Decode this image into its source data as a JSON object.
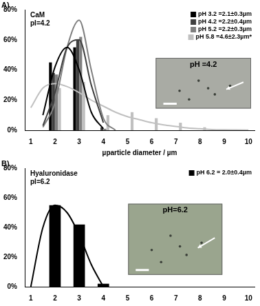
{
  "chart_data": [
    {
      "type": "bar",
      "panel_label": "A)",
      "title": "CaM",
      "subtitle": "pI=4.2",
      "inset_label": "pH =4.2",
      "x_label": "µparticle diameter / µm",
      "categories": [
        "1",
        null,
        "2",
        null,
        "3",
        null,
        "4",
        null,
        "5",
        null,
        "6",
        null,
        "7",
        null,
        "8",
        null,
        "9",
        null,
        "10"
      ],
      "series": [
        {
          "name": "pH 3.2 =2.1±0.3µm",
          "color": "#000000",
          "values": [
            null,
            null,
            45,
            null,
            55,
            null,
            null,
            null,
            null,
            null,
            null,
            null,
            null,
            null,
            null,
            null,
            null,
            null,
            null
          ],
          "curve": [
            null,
            10,
            42,
            55,
            40,
            12,
            1,
            null,
            null,
            null,
            null,
            null,
            null,
            null,
            null,
            null,
            null,
            null,
            null
          ]
        },
        {
          "name": "pH 4.2 =2.2±0.4µm",
          "color": "#404040",
          "values": [
            null,
            null,
            38,
            null,
            60,
            null,
            2,
            null,
            null,
            null,
            null,
            null,
            null,
            null,
            null,
            null,
            null,
            null,
            null
          ],
          "curve": [
            null,
            3,
            25,
            55,
            60,
            30,
            5,
            null,
            null,
            null,
            null,
            null,
            null,
            null,
            null,
            null,
            null,
            null,
            null
          ]
        },
        {
          "name": "pH 5.2 =2.2±0.3µm",
          "color": "#808080",
          "values": [
            null,
            null,
            37,
            null,
            62,
            null,
            1,
            null,
            null,
            null,
            null,
            null,
            null,
            null,
            null,
            null,
            null,
            null,
            null
          ],
          "curve": [
            null,
            2,
            18,
            55,
            73,
            40,
            8,
            0,
            null,
            null,
            null,
            null,
            null,
            null,
            null,
            null,
            null,
            null,
            null
          ]
        },
        {
          "name": "pH 5.8 =4.6±2.3µm*",
          "color": "#c0c0c0",
          "values": [
            null,
            null,
            28,
            null,
            32,
            null,
            10,
            null,
            12,
            null,
            8,
            null,
            5,
            null,
            2,
            null,
            null,
            null,
            null
          ],
          "curve": [
            15,
            28,
            31,
            29,
            25,
            20,
            16,
            12,
            9,
            7,
            5,
            3.5,
            2.5,
            1.5,
            1,
            0.5,
            0.3,
            0.2,
            0.1
          ]
        }
      ],
      "ylim": [
        0,
        80
      ],
      "yticks": [
        {
          "value": 0,
          "label": "0%"
        },
        {
          "value": 20,
          "label": "20%"
        },
        {
          "value": 40,
          "label": "40%"
        },
        {
          "value": 60,
          "label": "60%"
        },
        {
          "value": 80,
          "label": "80%"
        }
      ],
      "grid": false,
      "legend": "upper right"
    },
    {
      "type": "bar",
      "panel_label": "B)",
      "title": "Hyaluronidase",
      "subtitle": "pI=6.2",
      "inset_label": "pH=6.2",
      "categories": [
        "1",
        null,
        "2",
        null,
        "3",
        null,
        "4",
        null,
        "5",
        null,
        "6",
        null,
        "7",
        null,
        "8",
        null,
        "9",
        null,
        "10"
      ],
      "series": [
        {
          "name": "pH 6.2 = 2.0±0.4µm",
          "color": "#000000",
          "values": [
            null,
            null,
            55,
            null,
            42,
            null,
            2,
            null,
            null,
            null,
            null,
            null,
            null,
            null,
            null,
            null,
            null,
            null,
            null
          ],
          "curve": [
            0,
            40,
            55,
            50,
            35,
            15,
            0,
            null,
            null,
            null,
            null,
            null,
            null,
            null,
            null,
            null,
            null,
            null,
            null
          ]
        }
      ],
      "ylim": [
        0,
        80
      ],
      "yticks": [
        {
          "value": 0,
          "label": "0%"
        },
        {
          "value": 20,
          "label": "20%"
        },
        {
          "value": 40,
          "label": "40%"
        },
        {
          "value": 60,
          "label": "60%"
        },
        {
          "value": 80,
          "label": "80%"
        }
      ],
      "grid": false,
      "legend": "upper right"
    }
  ]
}
